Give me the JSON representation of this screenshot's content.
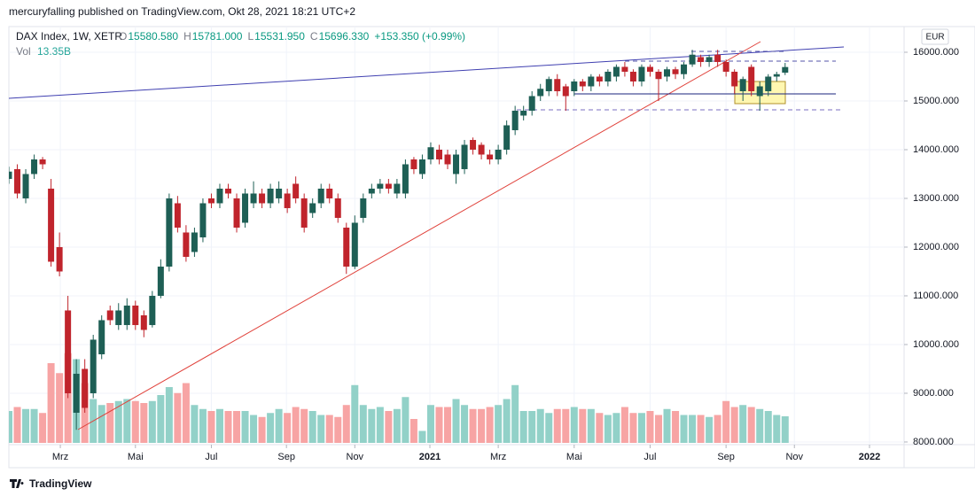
{
  "header": {
    "publisher": "mercuryfalling published on TradingView.com, Okt 28, 2021 18:21 UTC+2",
    "symbol": "DAX Index, 1W, XETR",
    "quote": [
      {
        "label": "O",
        "value": "15580.580"
      },
      {
        "label": "H",
        "value": "15781.000"
      },
      {
        "label": "L",
        "value": "15531.950"
      },
      {
        "label": "C",
        "value": "15696.330"
      }
    ],
    "change": "+153.350 (+0.99%)",
    "currency": "EUR",
    "footer": "TradingView"
  },
  "chart_data": {
    "type": "candlestick",
    "up_color": "#1e5f55",
    "down_color": "#c0242c",
    "up_volume_color": "#92d1c8",
    "down_volume_color": "#f7a4a4",
    "grid": true,
    "open": [
      13400,
      13600,
      13000,
      13500,
      13800,
      13200,
      12000,
      10700,
      8600,
      9500,
      9000,
      9800,
      10700,
      10400,
      10400,
      10800,
      10600,
      10400,
      11000,
      11600,
      12900,
      12300,
      11900,
      12200,
      13000,
      12900,
      13200,
      13000,
      12500,
      12900,
      13100,
      12900,
      13000,
      13100,
      13300,
      13000,
      12700,
      12900,
      13200,
      13000,
      12400,
      11600,
      12600,
      13100,
      13200,
      13300,
      13100,
      13100,
      13800,
      13500,
      13800,
      14000,
      13900,
      13500,
      13600,
      14200,
      14100,
      13900,
      13800,
      14000,
      14400,
      14700,
      14800,
      15100,
      15200,
      15450,
      15300,
      15200,
      15400,
      15300,
      15500,
      15400,
      15500,
      15700,
      15600,
      15400,
      15700,
      15600,
      15500,
      15650,
      15550,
      15750,
      15900,
      15800,
      15950,
      15800,
      15600,
      15200,
      15700,
      15100,
      15200,
      15500,
      15580.58
    ],
    "high": [
      13650,
      13700,
      13600,
      13900,
      13850,
      13400,
      12300,
      11000,
      9700,
      9700,
      10200,
      10600,
      10800,
      10850,
      10950,
      10900,
      10700,
      11100,
      11750,
      13100,
      13050,
      12450,
      12400,
      13000,
      13100,
      13300,
      13300,
      13100,
      13200,
      13350,
      13200,
      13300,
      13350,
      13200,
      13450,
      13100,
      13000,
      13300,
      13300,
      13100,
      12500,
      12650,
      13100,
      13300,
      13400,
      13400,
      13400,
      13800,
      13850,
      13900,
      14150,
      14100,
      14000,
      14000,
      14200,
      14250,
      14150,
      14000,
      14100,
      14600,
      14900,
      14900,
      15200,
      15350,
      15500,
      15550,
      15350,
      15450,
      15450,
      15550,
      15550,
      15650,
      15750,
      15800,
      15650,
      15750,
      15750,
      15650,
      15700,
      15700,
      15800,
      16050,
      15950,
      15950,
      16050,
      15850,
      15650,
      15500,
      15750,
      15400,
      15550,
      15600,
      15781
    ],
    "low": [
      13300,
      13000,
      12900,
      13400,
      13600,
      11600,
      11400,
      8900,
      8250,
      8600,
      8900,
      9700,
      10400,
      10300,
      10300,
      10300,
      10150,
      10350,
      10950,
      11500,
      12300,
      11700,
      11800,
      12100,
      12800,
      12800,
      13000,
      12300,
      12400,
      12800,
      12800,
      12800,
      12900,
      12700,
      12900,
      12300,
      12600,
      12800,
      12900,
      12500,
      11450,
      11550,
      12500,
      13000,
      13100,
      13100,
      13000,
      13000,
      13500,
      13400,
      13700,
      13700,
      13600,
      13300,
      13500,
      13900,
      13800,
      13700,
      13700,
      13900,
      14300,
      14600,
      14700,
      15000,
      15100,
      15100,
      14800,
      15100,
      15200,
      15200,
      15300,
      15300,
      15400,
      15500,
      15300,
      15300,
      15500,
      15000,
      15400,
      15450,
      15450,
      15700,
      15700,
      15700,
      15700,
      15500,
      15150,
      15000,
      15100,
      14800,
      15100,
      15400,
      15531.95
    ],
    "close": [
      13550,
      13100,
      13500,
      13800,
      13700,
      11700,
      11500,
      9000,
      9400,
      8700,
      10100,
      10500,
      10500,
      10700,
      10800,
      10400,
      10300,
      11000,
      11600,
      13000,
      12400,
      11800,
      12300,
      12900,
      12900,
      13200,
      13100,
      12400,
      13100,
      13100,
      12900,
      13200,
      13200,
      12800,
      13000,
      12400,
      12900,
      13200,
      13000,
      12600,
      11600,
      12500,
      13000,
      13200,
      13300,
      13200,
      13300,
      13700,
      13600,
      13800,
      14050,
      13800,
      13700,
      13900,
      14100,
      14000,
      13900,
      13800,
      14000,
      14500,
      14800,
      14800,
      15100,
      15250,
      15450,
      15200,
      15100,
      15400,
      15300,
      15500,
      15400,
      15600,
      15700,
      15600,
      15400,
      15700,
      15600,
      15450,
      15650,
      15550,
      15750,
      15950,
      15800,
      15900,
      15800,
      15600,
      15300,
      15450,
      15200,
      15300,
      15500,
      15550,
      15696.33
    ],
    "volume": {
      "name": "Vol",
      "volume_label": "13.35B",
      "values": [
        16,
        18,
        17,
        17,
        15,
        40,
        35,
        45,
        42,
        30,
        22,
        19,
        20,
        21,
        22,
        21,
        20,
        21,
        24,
        28,
        25,
        30,
        19,
        17,
        16,
        17,
        16,
        16,
        16,
        14,
        13,
        15,
        17,
        15,
        18,
        17,
        16,
        14,
        14,
        13,
        19,
        29,
        19,
        17,
        18,
        16,
        17,
        23,
        12,
        6,
        19,
        18,
        18,
        22,
        19,
        17,
        17,
        18,
        19,
        22,
        29,
        16,
        16,
        17,
        15,
        17,
        17,
        18,
        17,
        17,
        15,
        14,
        15,
        18,
        15,
        15,
        16,
        14,
        17,
        16,
        14,
        14,
        14,
        13,
        14,
        21,
        18,
        19,
        18,
        17,
        16,
        14,
        13.35
      ]
    },
    "xlim": [
      0,
      106.1
    ],
    "xticks": [
      {
        "value": 6.1,
        "label": "Mrz"
      },
      {
        "value": 15.0,
        "label": "Mai"
      },
      {
        "value": 24.0,
        "label": "Jul"
      },
      {
        "value": 32.9,
        "label": "Sep"
      },
      {
        "value": 41.0,
        "label": "Nov"
      },
      {
        "value": 49.9,
        "label": "2021"
      },
      {
        "value": 58.0,
        "label": "Mrz"
      },
      {
        "value": 67.0,
        "label": "Mai"
      },
      {
        "value": 76.0,
        "label": "Jul"
      },
      {
        "value": 85.0,
        "label": "Sep"
      },
      {
        "value": 93.1,
        "label": "Nov"
      },
      {
        "value": 102.0,
        "label": "2022"
      }
    ],
    "ylim": [
      7945,
      16527
    ],
    "yticks": [
      {
        "value": 8000,
        "label": "8000.000"
      },
      {
        "value": 9000,
        "label": "9000.000"
      },
      {
        "value": 10000,
        "label": "10000.000"
      },
      {
        "value": 11000,
        "label": "11000.000"
      },
      {
        "value": 12000,
        "label": "12000.000"
      },
      {
        "value": 13000,
        "label": "13000.000"
      },
      {
        "value": 14000,
        "label": "14000.000"
      },
      {
        "value": 15000,
        "label": "15000.000"
      },
      {
        "value": 16000,
        "label": "16000.000"
      }
    ]
  }
}
